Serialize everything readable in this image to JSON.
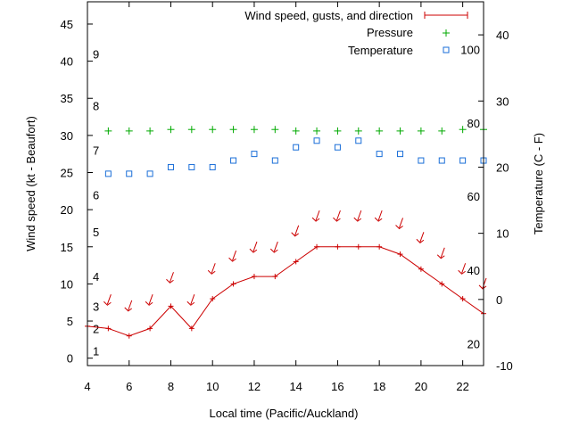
{
  "chart_data": {
    "type": "line",
    "xlabel": "Local time (Pacific/Auckland)",
    "ylabel_left": "Wind speed (kt - Beaufort)",
    "ylabel_right": "Temperature (C - F)",
    "xlim": [
      4,
      23
    ],
    "ylim_left": [
      -1,
      48
    ],
    "ylim_right": [
      -10,
      45
    ],
    "x_ticks": [
      4,
      6,
      8,
      10,
      12,
      14,
      16,
      18,
      20,
      22
    ],
    "y_ticks_left": [
      0,
      5,
      10,
      15,
      20,
      25,
      30,
      35,
      40,
      45
    ],
    "y_ticks_right": [
      -10,
      0,
      10,
      20,
      30,
      40
    ],
    "beaufort_labels": [
      {
        "label": "1",
        "kt": 1
      },
      {
        "label": "2",
        "kt": 4
      },
      {
        "label": "3",
        "kt": 7
      },
      {
        "label": "4",
        "kt": 11
      },
      {
        "label": "5",
        "kt": 17
      },
      {
        "label": "6",
        "kt": 22
      },
      {
        "label": "7",
        "kt": 28
      },
      {
        "label": "8",
        "kt": 34
      },
      {
        "label": "9",
        "kt": 41
      }
    ],
    "fahrenheit_labels": [
      {
        "label": "20",
        "c": -6.7
      },
      {
        "label": "40",
        "c": 4.4
      },
      {
        "label": "60",
        "c": 15.6
      },
      {
        "label": "80",
        "c": 26.7
      },
      {
        "label": "100",
        "c": 37.8
      }
    ],
    "legend": {
      "wind": "Wind speed, gusts, and direction",
      "pressure": "Pressure",
      "temperature": "Temperature"
    },
    "legend_position": "top-right",
    "colors": {
      "wind": "#cc0000",
      "pressure": "#00aa00",
      "temperature": "#1a6ed8"
    },
    "x": [
      4,
      5,
      6,
      7,
      8,
      9,
      10,
      11,
      12,
      13,
      14,
      15,
      16,
      17,
      18,
      19,
      20,
      21,
      22,
      23
    ],
    "wind_speed": [
      4.3,
      4,
      3,
      4,
      7,
      4,
      8,
      10,
      11,
      11,
      13,
      15,
      15,
      15,
      15,
      14,
      12,
      10,
      8,
      6
    ],
    "wind_arrow_level": [
      null,
      7.5,
      6.7,
      7.5,
      10.5,
      7.5,
      11.7,
      13.4,
      14.6,
      14.6,
      16.8,
      18.8,
      18.8,
      18.8,
      18.8,
      17.8,
      15.9,
      13.8,
      11.7,
      9.7
    ],
    "pressure_level": [
      null,
      30.6,
      30.6,
      30.6,
      30.8,
      30.8,
      30.8,
      30.8,
      30.8,
      30.8,
      30.6,
      30.6,
      30.6,
      30.6,
      30.6,
      30.6,
      30.6,
      30.6,
      30.8,
      30.8
    ],
    "temperature": [
      null,
      19,
      19,
      19,
      20,
      20,
      20,
      21,
      22,
      21,
      23,
      24,
      23,
      24,
      22,
      22,
      21,
      21,
      21,
      21
    ]
  }
}
